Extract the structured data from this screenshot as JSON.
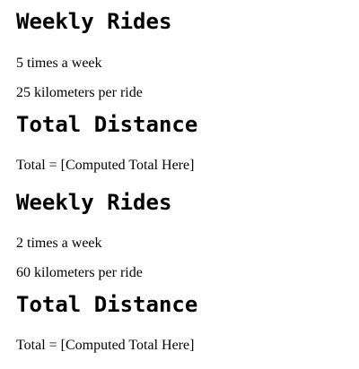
{
  "sections": [
    {
      "rides_heading": "Weekly Rides",
      "frequency": "5 times a week",
      "distance": "25 kilometers per ride",
      "total_heading": "Total Distance",
      "total_line": "Total = [Computed Total Here]"
    },
    {
      "rides_heading": "Weekly Rides",
      "frequency": "2 times a week",
      "distance": "60 kilometers per ride",
      "total_heading": "Total Distance",
      "total_line": "Total = [Computed Total Here]"
    }
  ]
}
